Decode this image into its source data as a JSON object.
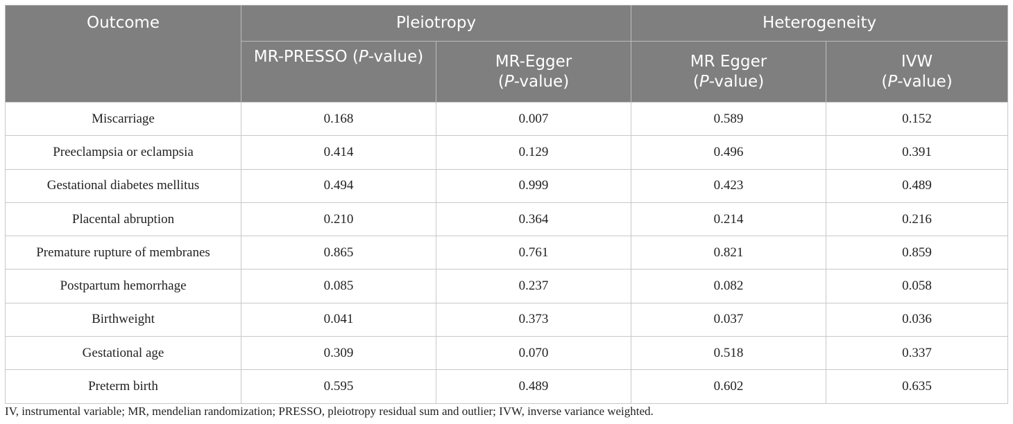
{
  "header": {
    "outcome": "Outcome",
    "group_pleiotropy": "Pleiotropy",
    "group_heterogeneity": "Heterogeneity",
    "sub": [
      {
        "name": "MR-PRESSO",
        "p": "P",
        "suffix": "-value)",
        "open": " ("
      },
      {
        "name": "MR-Egger",
        "p": "P",
        "suffix": "-value)",
        "open": "("
      },
      {
        "name": "MR Egger",
        "p": "P",
        "suffix": "-value)",
        "open": "("
      },
      {
        "name": "IVW",
        "p": "P",
        "suffix": "-value)",
        "open": "("
      }
    ]
  },
  "rows": [
    {
      "outcome": "Miscarriage",
      "mr_presso": "0.168",
      "mr_egger_pleio": "0.007",
      "mr_egger_het": "0.589",
      "ivw": "0.152"
    },
    {
      "outcome": "Preeclampsia or eclampsia",
      "mr_presso": "0.414",
      "mr_egger_pleio": "0.129",
      "mr_egger_het": "0.496",
      "ivw": "0.391"
    },
    {
      "outcome": "Gestational diabetes mellitus",
      "mr_presso": "0.494",
      "mr_egger_pleio": "0.999",
      "mr_egger_het": "0.423",
      "ivw": "0.489"
    },
    {
      "outcome": "Placental abruption",
      "mr_presso": "0.210",
      "mr_egger_pleio": "0.364",
      "mr_egger_het": "0.214",
      "ivw": "0.216"
    },
    {
      "outcome": "Premature rupture of membranes",
      "mr_presso": "0.865",
      "mr_egger_pleio": "0.761",
      "mr_egger_het": "0.821",
      "ivw": "0.859"
    },
    {
      "outcome": "Postpartum hemorrhage",
      "mr_presso": "0.085",
      "mr_egger_pleio": "0.237",
      "mr_egger_het": "0.082",
      "ivw": "0.058"
    },
    {
      "outcome": "Birthweight",
      "mr_presso": "0.041",
      "mr_egger_pleio": "0.373",
      "mr_egger_het": "0.037",
      "ivw": "0.036"
    },
    {
      "outcome": "Gestational age",
      "mr_presso": "0.309",
      "mr_egger_pleio": "0.070",
      "mr_egger_het": "0.518",
      "ivw": "0.337"
    },
    {
      "outcome": "Preterm birth",
      "mr_presso": "0.595",
      "mr_egger_pleio": "0.489",
      "mr_egger_het": "0.602",
      "ivw": "0.635"
    }
  ],
  "footnote": "IV, instrumental variable; MR, mendelian randomization; PRESSO, pleiotropy residual sum and outlier; IVW, inverse variance weighted."
}
